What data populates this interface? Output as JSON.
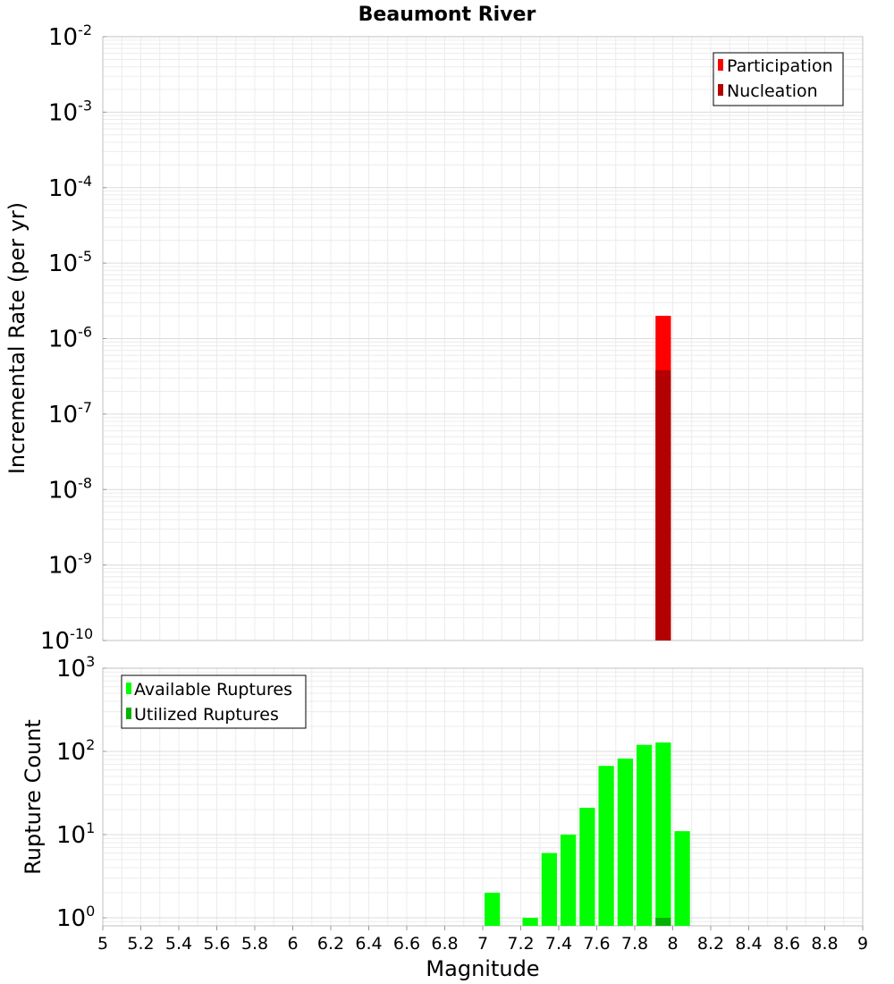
{
  "chart_data": [
    {
      "type": "bar",
      "title": "Beaumont River",
      "xlabel": "Magnitude",
      "ylabel": "Incremental Rate (per yr)",
      "yscale": "log",
      "ylim": [
        1e-10,
        0.01
      ],
      "xlim": [
        5,
        9
      ],
      "bin_width": 0.1,
      "y_tick_exponents": [
        "-2",
        "-3",
        "-4",
        "-5",
        "-6",
        "-7",
        "-8",
        "-9",
        "-10"
      ],
      "legend_position": "top-right",
      "series": [
        {
          "name": "Participation",
          "color": "#ff0000",
          "x": [
            7.95
          ],
          "values": [
            2e-06
          ]
        },
        {
          "name": "Nucleation",
          "color": "#b30000",
          "x": [
            7.95
          ],
          "values": [
            3.8e-07
          ]
        }
      ]
    },
    {
      "type": "bar",
      "title": "",
      "xlabel": "Magnitude",
      "ylabel": "Rupture Count",
      "yscale": "log",
      "ylim": [
        0.8,
        1000
      ],
      "xlim": [
        5,
        9
      ],
      "bin_width": 0.1,
      "y_tick_exponents": [
        "3",
        "2",
        "1",
        "0"
      ],
      "legend_position": "top-left",
      "series": [
        {
          "name": "Available Ruptures",
          "color": "#00ff00",
          "x": [
            7.05,
            7.25,
            7.35,
            7.45,
            7.55,
            7.65,
            7.75,
            7.85,
            7.95,
            8.05
          ],
          "values": [
            2,
            1,
            6,
            10,
            21,
            67,
            82,
            120,
            128,
            11
          ]
        },
        {
          "name": "Utilized Ruptures",
          "color": "#00b300",
          "x": [
            7.95
          ],
          "values": [
            1
          ]
        }
      ]
    }
  ],
  "x_ticks": [
    "5",
    "5.2",
    "5.4",
    "5.6",
    "5.8",
    "6",
    "6.2",
    "6.4",
    "6.6",
    "6.8",
    "7",
    "7.2",
    "7.4",
    "7.6",
    "7.8",
    "8",
    "8.2",
    "8.4",
    "8.6",
    "8.8",
    "9"
  ],
  "tick_base": "10"
}
